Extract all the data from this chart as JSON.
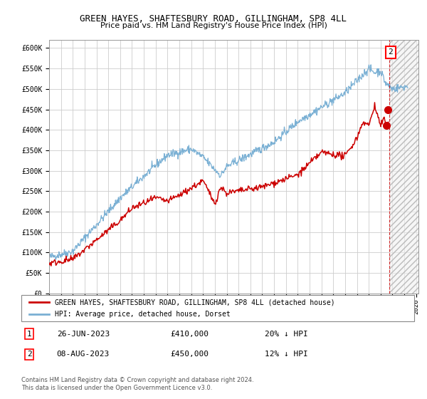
{
  "title": "GREEN HAYES, SHAFTESBURY ROAD, GILLINGHAM, SP8 4LL",
  "subtitle": "Price paid vs. HM Land Registry's House Price Index (HPI)",
  "legend_label_red": "GREEN HAYES, SHAFTESBURY ROAD, GILLINGHAM, SP8 4LL (detached house)",
  "legend_label_blue": "HPI: Average price, detached house, Dorset",
  "annotation1_label": "1",
  "annotation1_date": "26-JUN-2023",
  "annotation1_price": "£410,000",
  "annotation1_hpi": "20% ↓ HPI",
  "annotation2_label": "2",
  "annotation2_date": "08-AUG-2023",
  "annotation2_price": "£450,000",
  "annotation2_hpi": "12% ↓ HPI",
  "footer": "Contains HM Land Registry data © Crown copyright and database right 2024.\nThis data is licensed under the Open Government Licence v3.0.",
  "ylim": [
    0,
    620000
  ],
  "yticks": [
    0,
    50000,
    100000,
    150000,
    200000,
    250000,
    300000,
    350000,
    400000,
    450000,
    500000,
    550000,
    600000
  ],
  "background_color": "#ffffff",
  "grid_color": "#cccccc",
  "red_color": "#cc0000",
  "blue_color": "#7ab0d4",
  "point1_x": 2023.49,
  "point1_y": 410000,
  "point2_x": 2023.61,
  "point2_y": 450000,
  "vline_x": 2023.72,
  "xmin": 1995,
  "xmax": 2026.2
}
